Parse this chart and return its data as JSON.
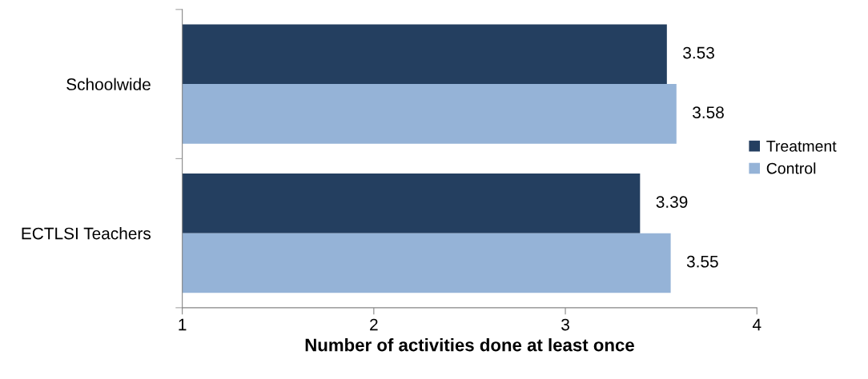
{
  "chart_data": {
    "type": "bar",
    "orientation": "horizontal",
    "xlabel": "Number of activities done at least once",
    "categories": [
      "Schoolwide",
      "ECTLSI Teachers"
    ],
    "series": [
      {
        "name": "Treatment",
        "color": "#243f60",
        "values": [
          3.53,
          3.39
        ]
      },
      {
        "name": "Control",
        "color": "#95b3d7",
        "values": [
          3.58,
          3.55
        ]
      }
    ],
    "xlim": [
      1,
      4
    ],
    "xticks": [
      1,
      2,
      3,
      4
    ],
    "grid": false,
    "legend": "right",
    "data_labels": true
  }
}
